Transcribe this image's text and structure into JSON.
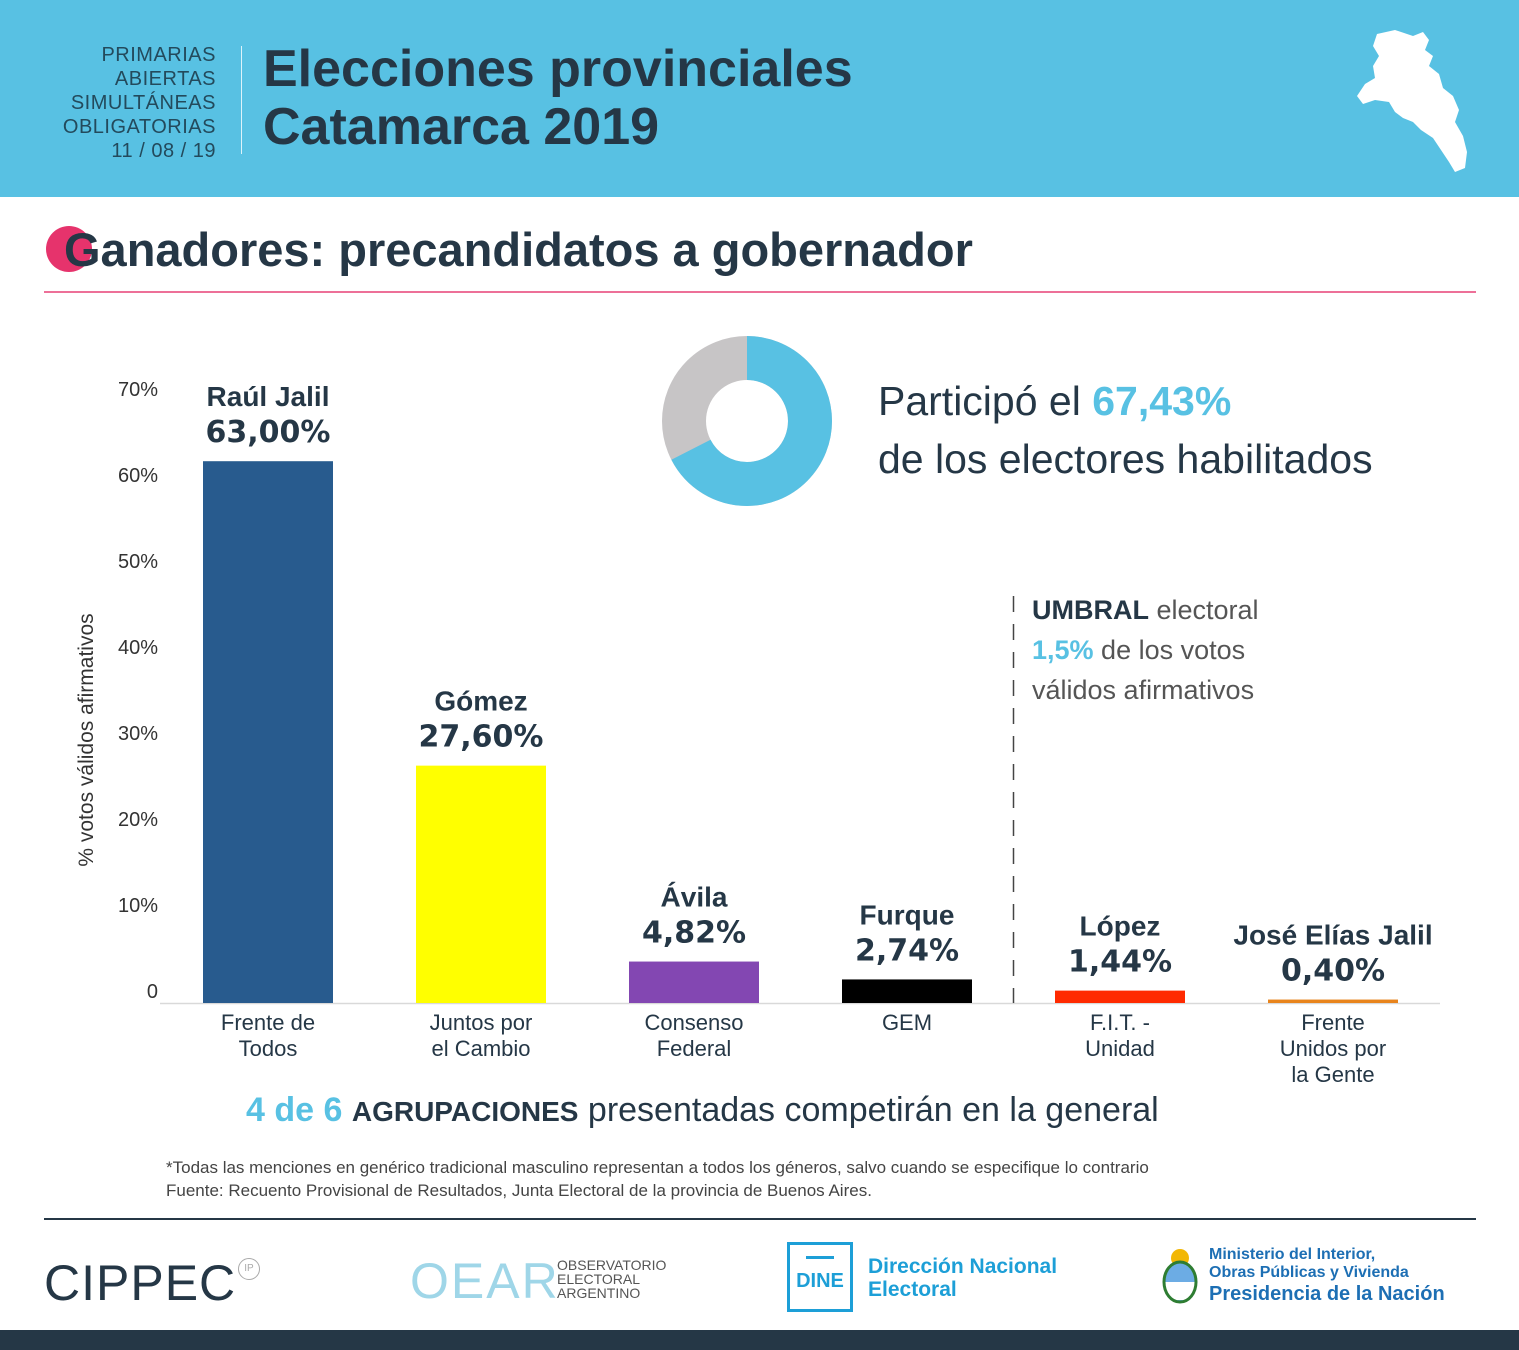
{
  "header": {
    "paso_lines": [
      "PRIMARIAS",
      "ABIERTAS",
      "SIMULTÁNEAS",
      "OBLIGATORIAS",
      "11 / 08 / 19"
    ],
    "title_line1": "Elecciones provinciales",
    "title_line2": "Catamarca 2019",
    "map_icon": "catamarca-map-icon"
  },
  "section": {
    "title": "Ganadores: precandidatos a gobernador"
  },
  "participation": {
    "text_before": "Participó el ",
    "value_label": "67,43%",
    "value": 67.43,
    "text_after": "de los electores habilitados"
  },
  "threshold": {
    "strong": "UMBRAL",
    "rest": " electoral",
    "value_label": "1,5%",
    "line2_rest": " de los votos",
    "line3": "válidos afirmativos"
  },
  "chart_data": {
    "type": "bar",
    "ylabel": "% votos válidos afirmativos",
    "ylim": [
      0,
      70
    ],
    "yticks": [
      0,
      10,
      20,
      30,
      40,
      50,
      60,
      70
    ],
    "ytick_labels": [
      "0",
      "10%",
      "20%",
      "30%",
      "40%",
      "50%",
      "60%",
      "70%"
    ],
    "categories": [
      [
        "Frente de",
        "Todos"
      ],
      [
        "Juntos por",
        "el Cambio"
      ],
      [
        "Consenso",
        "Federal"
      ],
      [
        "GEM"
      ],
      [
        "F.I.T. -",
        "Unidad"
      ],
      [
        "Frente",
        "Unidos por",
        "la Gente"
      ]
    ],
    "candidates": [
      "Raúl Jalil",
      "Gómez",
      "Ávila",
      "Furque",
      "López",
      "José Elías Jalil"
    ],
    "values": [
      63.0,
      27.6,
      4.82,
      2.74,
      1.44,
      0.4
    ],
    "value_labels": [
      "63,00%",
      "27,60%",
      "4,82%",
      "2,74%",
      "1,44%",
      "0,40%"
    ],
    "colors": [
      "#285b8e",
      "#ffff00",
      "#8347b2",
      "#000000",
      "#ff2a00",
      "#e8841c"
    ],
    "threshold_after_index": 3
  },
  "summary": {
    "count": "4 de 6",
    "agrupaciones": "AGRUPACIONES",
    "rest": " presentadas competirán en la general"
  },
  "notes": {
    "line1": "*Todas las menciones en genérico tradicional masculino representan a todos los géneros, salvo cuando se especifique lo contrario",
    "line2": "Fuente: Recuento Provisional de Resultados, Junta Electoral de la provincia de Buenos Aires."
  },
  "footer": {
    "cippec": "CIPPEC",
    "cippec_badge": "IP",
    "oear": "OEAR",
    "oear_lines": [
      "OBSERVATORIO",
      "ELECTORAL",
      "ARGENTINO"
    ],
    "dine_box": "DINE",
    "dine_lines": [
      "Dirección Nacional",
      "Electoral"
    ],
    "ministry_lines": [
      "Ministerio del Interior,",
      "Obras Públicas y Vivienda"
    ],
    "presidency": "Presidencia de la Nación"
  },
  "colors": {
    "header_bg": "#58c1e3",
    "accent_pink": "#e6336c",
    "dark": "#253746"
  }
}
